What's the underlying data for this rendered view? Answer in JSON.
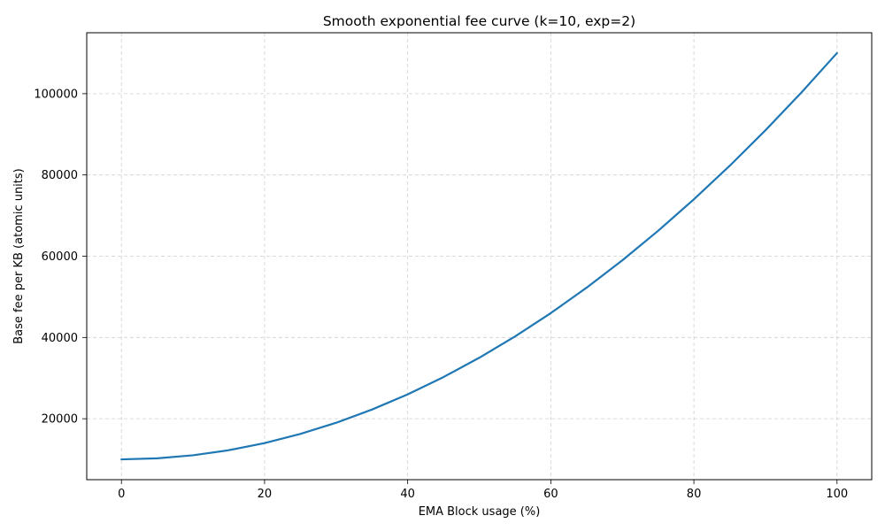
{
  "chart_data": {
    "type": "line",
    "title": "Smooth exponential fee curve (k=10, exp=2)",
    "xlabel": "EMA Block usage (%)",
    "ylabel": "Base fee per KB (atomic units)",
    "xlim": [
      -4.85,
      104.85
    ],
    "ylim": [
      5000,
      115000
    ],
    "xticks": [
      0,
      20,
      40,
      60,
      80,
      100
    ],
    "yticks": [
      20000,
      40000,
      60000,
      80000,
      100000
    ],
    "xtick_labels": [
      "0",
      "20",
      "40",
      "60",
      "80",
      "100"
    ],
    "ytick_labels": [
      "20000",
      "40000",
      "60000",
      "80000",
      "100000"
    ],
    "grid": true,
    "grid_style": "dashed",
    "legend": "none",
    "series": [
      {
        "color": "#1f77b4",
        "x": [
          0,
          5,
          10,
          15,
          20,
          25,
          30,
          35,
          40,
          45,
          50,
          55,
          60,
          65,
          70,
          75,
          80,
          85,
          90,
          95,
          100
        ],
        "y": [
          10000,
          10250,
          11000,
          12250,
          14000,
          16250,
          19000,
          22250,
          26000,
          30250,
          35000,
          40250,
          46000,
          52250,
          59000,
          66250,
          74000,
          82250,
          91000,
          100250,
          110000
        ]
      }
    ]
  }
}
